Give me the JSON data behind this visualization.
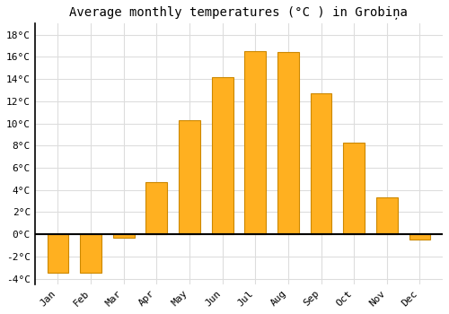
{
  "title": "Average monthly temperatures (°C ) in Grobiņa",
  "months": [
    "Jan",
    "Feb",
    "Mar",
    "Apr",
    "May",
    "Jun",
    "Jul",
    "Aug",
    "Sep",
    "Oct",
    "Nov",
    "Dec"
  ],
  "temperatures": [
    -3.5,
    -3.5,
    -0.3,
    4.7,
    10.3,
    14.2,
    16.5,
    16.4,
    12.7,
    8.3,
    3.3,
    -0.5
  ],
  "bar_color": "#FFB020",
  "bar_edge_color": "#CC8800",
  "ylim": [
    -4.5,
    19
  ],
  "yticks": [
    -4,
    -2,
    0,
    2,
    4,
    6,
    8,
    10,
    12,
    14,
    16,
    18
  ],
  "ytick_labels": [
    "-4°C",
    "-2°C",
    "0°C",
    "2°C",
    "4°C",
    "6°C",
    "8°C",
    "10°C",
    "12°C",
    "14°C",
    "16°C",
    "18°C"
  ],
  "grid_color": "#dddddd",
  "bg_color": "#ffffff",
  "title_fontsize": 10,
  "tick_fontsize": 8,
  "bar_width": 0.65
}
